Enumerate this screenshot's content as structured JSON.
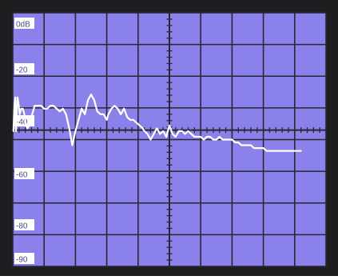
{
  "colors": {
    "bezel": "#1e1e20",
    "screen": "#8a81ea",
    "grid": "#2a2733",
    "trace": "#ffffff",
    "label_bg": "#ffffff",
    "label_text": "#4a4a8a"
  },
  "chart_data": {
    "type": "line",
    "title": "",
    "xlabel": "",
    "ylabel": "",
    "y_tick_labels": [
      "0dB",
      "-20",
      "-40",
      "-60",
      "-80",
      "-90"
    ],
    "ylim": [
      -90,
      0
    ],
    "xlim": [
      0,
      10
    ],
    "grid": true,
    "center_axes": true,
    "series": [
      {
        "x": [
          0.02,
          0.05,
          0.08,
          0.1,
          0.13,
          0.15,
          0.18,
          0.22,
          0.27,
          0.32,
          0.37,
          0.42,
          0.47,
          0.52,
          0.57,
          0.62,
          0.7,
          0.8,
          0.9,
          1.0,
          1.1,
          1.2,
          1.3,
          1.4,
          1.5,
          1.6,
          1.7,
          1.8,
          1.9,
          2.0,
          2.1,
          2.2,
          2.3,
          2.4,
          2.5,
          2.6,
          2.7,
          2.8,
          2.85,
          2.9,
          2.95,
          3.0,
          3.05,
          3.1,
          3.15,
          3.25,
          3.35,
          3.45,
          3.55,
          3.65,
          3.75,
          3.85,
          3.95,
          4.05,
          4.15,
          4.2,
          4.3,
          4.4,
          4.5,
          4.6,
          4.7,
          4.8,
          4.9,
          5.0,
          5.1,
          5.2,
          5.3,
          5.4,
          5.5,
          5.6,
          5.7,
          5.8,
          5.9,
          6.0,
          6.1,
          6.2,
          6.3,
          6.4,
          6.5,
          6.6,
          6.7,
          6.8,
          6.9,
          7.0,
          7.1,
          7.2,
          7.3,
          7.4,
          7.5,
          7.6,
          7.7,
          7.8,
          7.9,
          8.0,
          8.1,
          8.2,
          8.3,
          8.4,
          8.5,
          8.6,
          8.7,
          8.8,
          8.9,
          9.0,
          9.1,
          9.2
        ],
        "y": [
          -42,
          -33,
          -30,
          -42,
          -35,
          -30,
          -32,
          -36,
          -34,
          -34,
          -36,
          -40,
          -41,
          -40,
          -40,
          -36,
          -33,
          -33,
          -33,
          -34,
          -34,
          -33,
          -33,
          -34,
          -35,
          -34,
          -36,
          -41,
          -47,
          -42,
          -38,
          -34,
          -36,
          -31,
          -29,
          -31,
          -35,
          -36,
          -36,
          -36,
          -37,
          -38,
          -36,
          -35,
          -34,
          -33,
          -34,
          -36,
          -34,
          -37,
          -38,
          -38,
          -39,
          -40,
          -41,
          -42,
          -43,
          -45,
          -43,
          -41,
          -43,
          -42,
          -44,
          -40,
          -43,
          -44,
          -42,
          -42,
          -43,
          -42,
          -43,
          -44,
          -44,
          -44,
          -45,
          -44,
          -44,
          -45,
          -45,
          -44,
          -45,
          -45,
          -45,
          -45,
          -46,
          -46,
          -47,
          -47,
          -47,
          -47,
          -48,
          -48,
          -48,
          -48,
          -49,
          -49,
          -49,
          -49,
          -49,
          -49,
          -49,
          -49,
          -49,
          -49,
          -49,
          -49
        ]
      }
    ]
  }
}
